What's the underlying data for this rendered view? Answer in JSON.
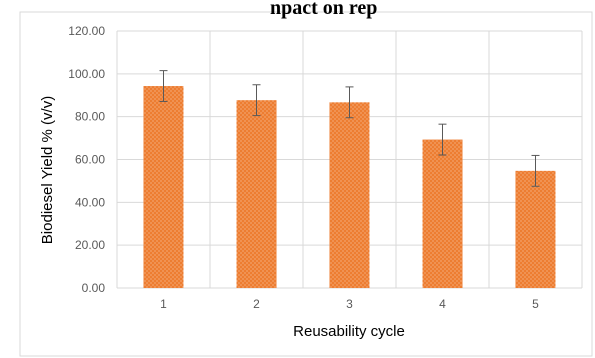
{
  "page": {
    "top_cut_text": "npact on rep"
  },
  "chart_data": {
    "type": "bar",
    "categories": [
      "1",
      "2",
      "3",
      "4",
      "5"
    ],
    "values": [
      94.3,
      87.7,
      86.7,
      69.3,
      54.7
    ],
    "errors": [
      7.2,
      7.2,
      7.2,
      7.2,
      7.2
    ],
    "title": "",
    "xlabel": "Reusability cycle",
    "ylabel": "Biodiesel Yield % (v/v)",
    "ylim": [
      0,
      120
    ],
    "yticks": [
      "0.00",
      "20.00",
      "40.00",
      "60.00",
      "80.00",
      "100.00",
      "120.00"
    ],
    "grid": true,
    "legend": "none",
    "colors": {
      "bar": "#ED7D31",
      "bar_dots": "#F7C6A3",
      "grid": "#D9D9D9",
      "error_bar": "#595959"
    }
  }
}
